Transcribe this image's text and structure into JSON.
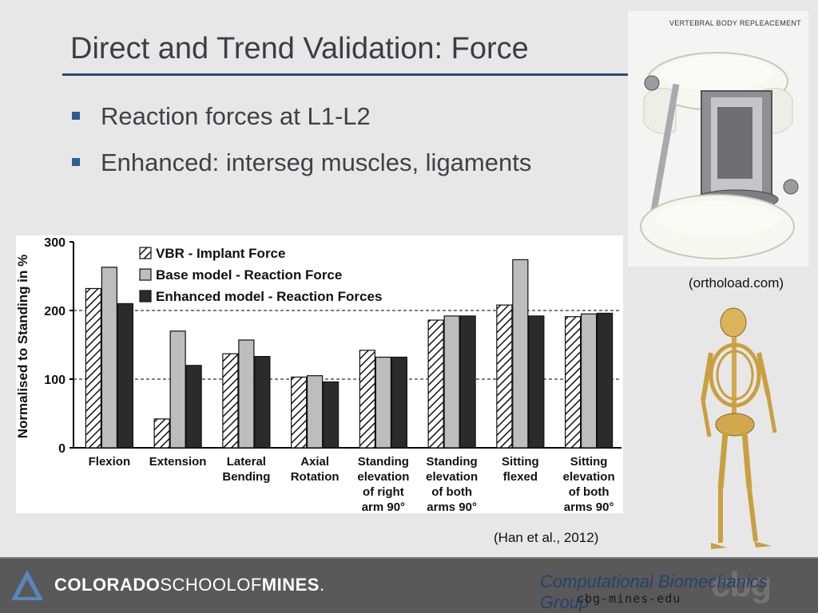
{
  "slide": {
    "title": "Direct and Trend Validation: Force",
    "bullets": [
      "Reaction forces at L1-L2",
      "Enhanced: interseg muscles, ligaments"
    ],
    "chart_citation": "(Han et al., 2012)",
    "photo_citation": "(orthoload.com)",
    "photo_caption": "VERTEBRAL BODY REPLEACEMENT"
  },
  "footer": {
    "school_bold1": "COLORADO",
    "school_thin": "SCHOOLOF",
    "school_bold2": "MINES",
    "school_suffix": ".",
    "group_name": "Computational Biomechanics Group",
    "group_url": "cbg-mines-edu",
    "group_logo": "cbg"
  },
  "colors": {
    "accent": "#2c4a70",
    "bullet": "#2d5b96",
    "base": "#bdbdbd",
    "enhanced": "#2b2b2b"
  },
  "chart_data": {
    "type": "bar",
    "ylabel": "Normalised to Standing in %",
    "ylim": [
      0,
      300
    ],
    "yticks": [
      0,
      100,
      200,
      300
    ],
    "dashed_reference_lines": [
      100,
      200
    ],
    "legend_placement": "top-left",
    "categories": [
      [
        "Flexion"
      ],
      [
        "Extension"
      ],
      [
        "Lateral",
        "Bending"
      ],
      [
        "Axial",
        "Rotation"
      ],
      [
        "Standing",
        "elevation",
        "of right",
        "arm 90°"
      ],
      [
        "Standing",
        "elevation",
        "of both",
        "arms 90°"
      ],
      [
        "Sitting",
        "flexed"
      ],
      [
        "Sitting",
        "elevation",
        "of both",
        "arms 90°"
      ]
    ],
    "series": [
      {
        "name": "VBR - Implant Force",
        "style": "hatched",
        "values": [
          232,
          42,
          137,
          103,
          142,
          186,
          208,
          191
        ]
      },
      {
        "name": "Base model - Reaction Force",
        "style": "light-gray",
        "values": [
          263,
          170,
          157,
          105,
          132,
          192,
          274,
          195
        ]
      },
      {
        "name": "Enhanced model - Reaction Forces",
        "style": "dark",
        "values": [
          210,
          120,
          133,
          96,
          132,
          192,
          192,
          196
        ]
      }
    ]
  }
}
